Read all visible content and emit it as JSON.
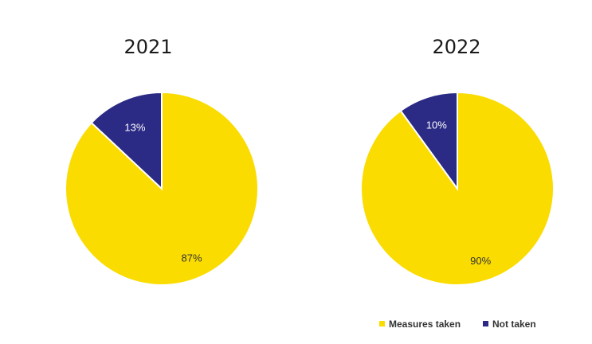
{
  "chart_data": [
    {
      "type": "pie",
      "title": "2021",
      "categories": [
        "Measures taken",
        "Not taken"
      ],
      "values": [
        87,
        13
      ],
      "labels": [
        "87%",
        "13%"
      ],
      "colors": [
        "#FADC00",
        "#2B2A84"
      ]
    },
    {
      "type": "pie",
      "title": "2022",
      "categories": [
        "Measures taken",
        "Not taken"
      ],
      "values": [
        90,
        10
      ],
      "labels": [
        "90%",
        "10%"
      ],
      "colors": [
        "#FADC00",
        "#2B2A84"
      ]
    }
  ],
  "legend": {
    "placement": "bottom-right",
    "items": [
      {
        "label": "Measures taken",
        "color": "#FADC00"
      },
      {
        "label": "Not taken",
        "color": "#2B2A84"
      }
    ]
  },
  "label_colors": {
    "on_dark": "#ffffff",
    "on_light": "#333333"
  }
}
